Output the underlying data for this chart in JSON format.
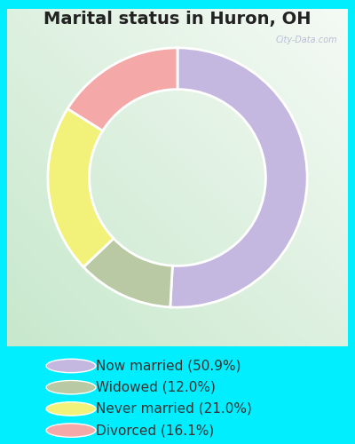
{
  "title": "Marital status in Huron, OH",
  "slices": [
    50.9,
    12.0,
    21.0,
    16.1
  ],
  "colors": [
    "#c5b8e0",
    "#b8c9a3",
    "#f2f27a",
    "#f4a8a8"
  ],
  "labels": [
    "Now married (50.9%)",
    "Widowed (12.0%)",
    "Never married (21.0%)",
    "Divorced (16.1%)"
  ],
  "outer_bg": "#00eeff",
  "chart_bg_tl": "#e8f5ee",
  "chart_bg_tr": "#f8fcfa",
  "chart_bg_bl": "#d0ead8",
  "chart_bg_br": "#e0f0e8",
  "donut_width": 0.32,
  "title_fontsize": 14,
  "legend_fontsize": 11,
  "watermark": "City-Data.com"
}
